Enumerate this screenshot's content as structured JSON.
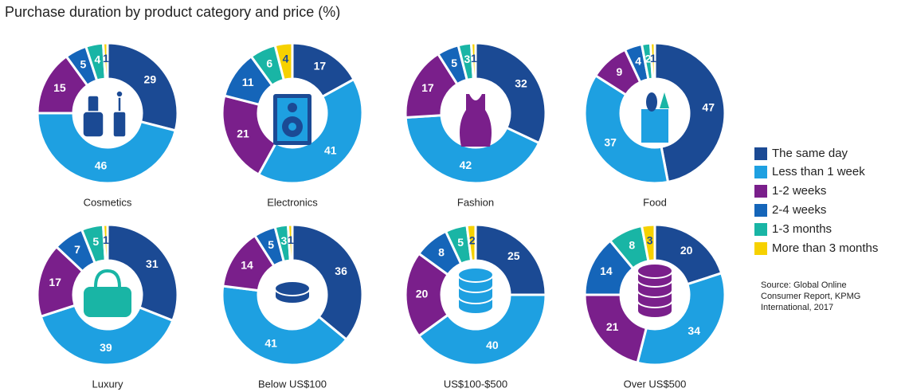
{
  "title": "Purchase duration by product category and price (%)",
  "legend": {
    "items": [
      {
        "name": "The same day",
        "color": "#1b4a94"
      },
      {
        "name": "Less than 1 week",
        "color": "#1ea0e1"
      },
      {
        "name": "1-2 weeks",
        "color": "#7a1f8b"
      },
      {
        "name": "2-4 weeks",
        "color": "#1565b9"
      },
      {
        "name": "1-3 months",
        "color": "#19b5a5"
      },
      {
        "name": "More than 3 months",
        "color": "#f6d100"
      }
    ]
  },
  "source": [
    "Source: Global Online",
    "Consumer Report, KPMG",
    "International, 2017"
  ],
  "chart_data": [
    {
      "type": "donut",
      "label": "Cosmetics",
      "values": [
        29,
        46,
        15,
        5,
        4,
        1
      ]
    },
    {
      "type": "donut",
      "label": "Electronics",
      "values": [
        17,
        41,
        21,
        11,
        6,
        4
      ]
    },
    {
      "type": "donut",
      "label": "Fashion",
      "values": [
        32,
        42,
        17,
        5,
        3,
        1
      ]
    },
    {
      "type": "donut",
      "label": "Food",
      "values": [
        47,
        37,
        9,
        4,
        2,
        1
      ]
    },
    {
      "type": "donut",
      "label": "Luxury",
      "values": [
        31,
        39,
        17,
        7,
        5,
        1
      ]
    },
    {
      "type": "donut",
      "label": "Below US$100",
      "values": [
        36,
        41,
        14,
        5,
        3,
        1
      ]
    },
    {
      "type": "donut",
      "label": "US$100-$500",
      "values": [
        25,
        40,
        20,
        8,
        5,
        2
      ]
    },
    {
      "type": "donut",
      "label": "Over US$500",
      "values": [
        20,
        34,
        21,
        14,
        8,
        3
      ]
    }
  ]
}
